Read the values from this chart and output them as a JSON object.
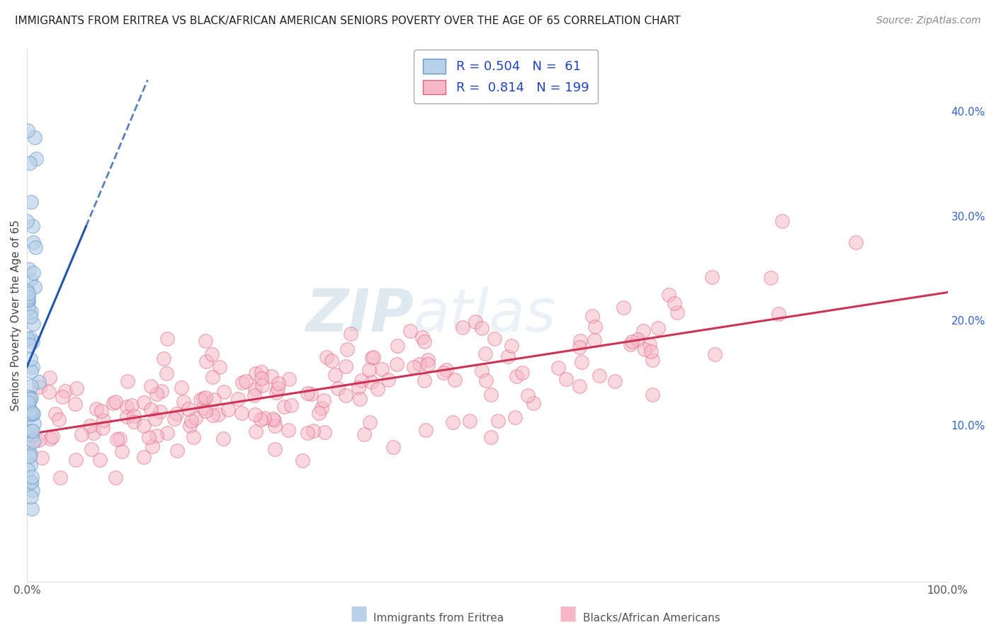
{
  "title": "IMMIGRANTS FROM ERITREA VS BLACK/AFRICAN AMERICAN SENIORS POVERTY OVER THE AGE OF 65 CORRELATION CHART",
  "source": "Source: ZipAtlas.com",
  "ylabel": "Seniors Poverty Over the Age of 65",
  "blue_R": 0.504,
  "blue_N": 61,
  "pink_R": 0.814,
  "pink_N": 199,
  "blue_label": "Immigrants from Eritrea",
  "pink_label": "Blacks/African Americans",
  "blue_color": "#b8d0e8",
  "blue_edge_color": "#6699cc",
  "blue_line_color": "#2255aa",
  "pink_color": "#f5b8c8",
  "pink_edge_color": "#e06080",
  "pink_line_color": "#cc3355",
  "watermark_zip": "ZIP",
  "watermark_atlas": "Atlas",
  "xlim": [
    0.0,
    1.0
  ],
  "ylim": [
    -0.05,
    0.46
  ],
  "yticks": [
    0.1,
    0.2,
    0.3,
    0.4
  ],
  "ytick_labels": [
    "10.0%",
    "20.0%",
    "30.0%",
    "40.0%"
  ],
  "right_tick_color": "#3366cc",
  "grid_color": "#cccccc",
  "grid_style": "--",
  "title_fontsize": 11,
  "source_fontsize": 10,
  "ylabel_fontsize": 11
}
